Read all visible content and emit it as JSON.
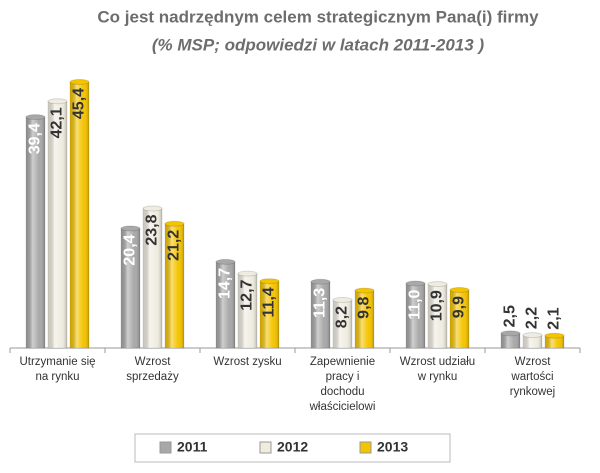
{
  "chart_data": {
    "type": "bar",
    "title": "Co jest nadrzędnym celem strategicznym Pana(i) firmy",
    "subtitle": "(% MSP; odpowiedzi w latach 2011-2013 )",
    "categories": [
      "Utrzymanie się na rynku",
      "Wzrost sprzedaży",
      "Wzrost zysku",
      "Zapewnienie pracy i dochodu właścicielowi",
      "Wzrost udziału w rynku",
      "Wzrost wartości rynkowej"
    ],
    "series": [
      {
        "name": "2011",
        "color": "#a8a8a8",
        "values": [
          39.4,
          20.4,
          14.7,
          11.3,
          11.0,
          2.5
        ],
        "value_labels": [
          "39,4",
          "20,4",
          "14,7",
          "11,3",
          "11,0",
          "2,5"
        ]
      },
      {
        "name": "2012",
        "color": "#efece0",
        "values": [
          42.1,
          23.8,
          12.7,
          8.2,
          10.9,
          2.2
        ],
        "value_labels": [
          "42,1",
          "23,8",
          "12,7",
          "8,2",
          "10,9",
          "2,2"
        ]
      },
      {
        "name": "2013",
        "color": "#f5c400",
        "values": [
          45.4,
          21.2,
          11.4,
          9.8,
          9.9,
          2.1
        ],
        "value_labels": [
          "45,4",
          "21,2",
          "11,4",
          "9,8",
          "9,9",
          "2,1"
        ]
      }
    ],
    "ylim": [
      0,
      50
    ]
  }
}
